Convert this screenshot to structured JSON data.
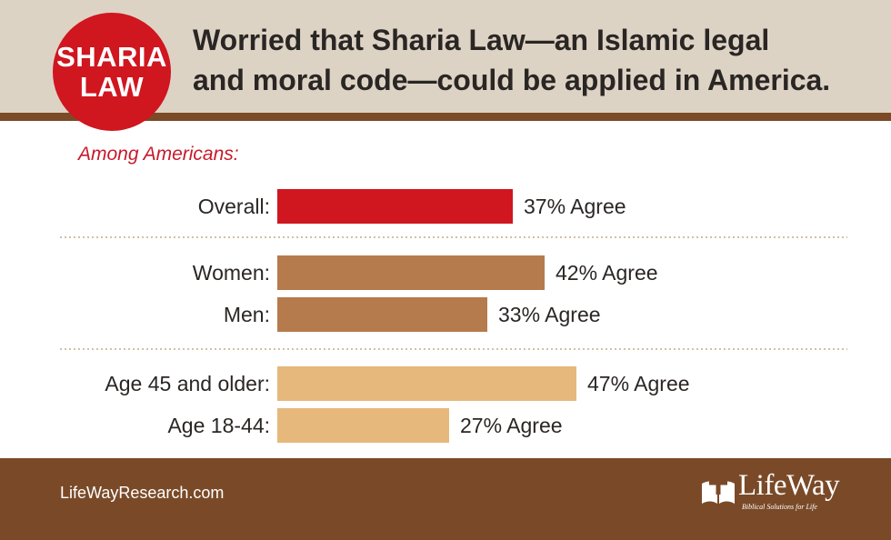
{
  "header": {
    "badge_line1": "SHARIA",
    "badge_line2": "LAW",
    "title_line1": "Worried that Sharia Law—an Islamic legal",
    "title_line2": "and moral code—could be applied in America."
  },
  "subtitle": "Among Americans:",
  "colors": {
    "overall": "#d0161f",
    "gender": "#b57b4c",
    "age": "#e6b87c",
    "header_bg": "#ddd3c5",
    "accent_brown": "#7a4a28",
    "separator": "#c8ab86"
  },
  "chart_data": {
    "type": "bar",
    "orientation": "horizontal",
    "title": "",
    "xlabel": "",
    "ylabel": "",
    "xlim": [
      0,
      100
    ],
    "grid": false,
    "groups": [
      {
        "name": "overall",
        "bars": [
          {
            "category": "Overall:",
            "value": 37,
            "label": "37% Agree"
          }
        ]
      },
      {
        "name": "gender",
        "bars": [
          {
            "category": "Women:",
            "value": 42,
            "label": "42% Agree"
          },
          {
            "category": "Men:",
            "value": 33,
            "label": "33% Agree"
          }
        ]
      },
      {
        "name": "age",
        "bars": [
          {
            "category": "Age 45 and older:",
            "value": 47,
            "label": "47% Agree"
          },
          {
            "category": "Age 18-44:",
            "value": 27,
            "label": "27% Agree"
          }
        ]
      }
    ]
  },
  "footer": {
    "url": "LifeWayResearch.com",
    "logo_name": "LifeWay",
    "logo_tagline": "Biblical Solutions for Life",
    "logo_icon": "lifeway-cross-book-icon"
  }
}
